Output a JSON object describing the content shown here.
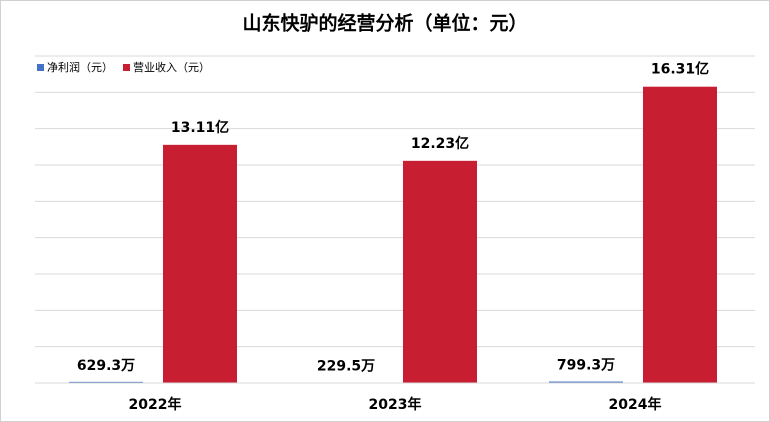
{
  "chart_data": {
    "type": "bar",
    "title": "山东快驴的经营分析（单位：元）",
    "categories": [
      "2022年",
      "2023年",
      "2024年"
    ],
    "series": [
      {
        "name": "净利润（元）",
        "color": "#4472c4",
        "values": [
          6293000,
          2295000,
          7993000
        ],
        "value_labels": [
          "629.3万",
          "229.5万",
          "799.3万"
        ]
      },
      {
        "name": "营业收入（元）",
        "color": "#c81e32",
        "values": [
          1311000000,
          1223000000,
          1631000000
        ],
        "value_labels": [
          "13.11亿",
          "12.23亿",
          "16.31亿"
        ]
      }
    ],
    "ylim": [
      0,
      1800000000
    ],
    "yticks": [
      0,
      200000000,
      400000000,
      600000000,
      800000000,
      1000000000,
      1200000000,
      1400000000,
      1600000000,
      1800000000
    ],
    "grid": true,
    "legend": "top-left"
  }
}
